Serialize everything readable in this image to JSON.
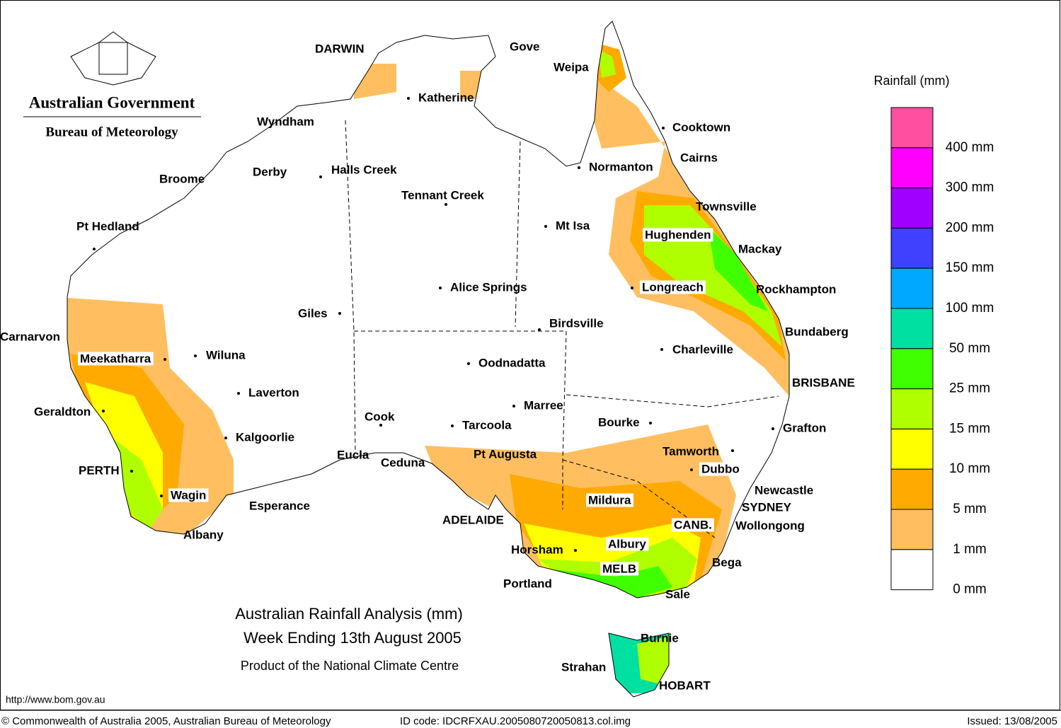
{
  "logo": {
    "line1": "Australian Government",
    "line2": "Bureau of Meteorology"
  },
  "title": {
    "line1": "Australian Rainfall Analysis (mm)",
    "line2": "Week Ending 13th August 2005",
    "line3": "Product of the National Climate Centre"
  },
  "places": [
    "DARWIN",
    "Gove",
    "Weipa",
    "Katherine",
    "Wyndham",
    "Cooktown",
    "Cairns",
    "Broome",
    "Derby",
    "Halls Creek",
    "Normanton",
    "Tennant Creek",
    "Townsville",
    "Pt Hedland",
    "Mt Isa",
    "Hughenden",
    "Mackay",
    "Alice Springs",
    "Longreach",
    "Rockhampton",
    "Giles",
    "Birdsville",
    "Bundaberg",
    "Carnarvon",
    "Charleville",
    "Meekatharra",
    "Wiluna",
    "Oodnadatta",
    "BRISBANE",
    "Laverton",
    "Marree",
    "Geraldton",
    "Cook",
    "Bourke",
    "Tarcoola",
    "Grafton",
    "Kalgoorlie",
    "Tamworth",
    "Eucla",
    "Pt Augusta",
    "Ceduna",
    "Dubbo",
    "PERTH",
    "Newcastle",
    "Wagin",
    "Mildura",
    "Esperance",
    "SYDNEY",
    "ADELAIDE",
    "CANB.",
    "Wollongong",
    "Albany",
    "Albury",
    "Horsham",
    "Bega",
    "MELB",
    "Portland",
    "Sale",
    "Burnie",
    "Strahan",
    "HOBART"
  ],
  "legend": {
    "title": "Rainfall (mm)",
    "items": [
      {
        "label": "400 mm",
        "color": "#ff4fa0"
      },
      {
        "label": "300 mm",
        "color": "#ff00ff"
      },
      {
        "label": "200 mm",
        "color": "#a000ff"
      },
      {
        "label": "150 mm",
        "color": "#4040ff"
      },
      {
        "label": "100 mm",
        "color": "#00a8ff"
      },
      {
        "label": "50 mm",
        "color": "#00e0a0"
      },
      {
        "label": "25 mm",
        "color": "#40ff00"
      },
      {
        "label": "15 mm",
        "color": "#b0ff00"
      },
      {
        "label": "10 mm",
        "color": "#ffff00"
      },
      {
        "label": "5 mm",
        "color": "#ffaa00"
      },
      {
        "label": "1 mm",
        "color": "#ffbf60"
      },
      {
        "label": "0 mm",
        "color": "#ffffff"
      }
    ]
  },
  "footer": {
    "url": "http://www.bom.gov.au",
    "copyright": "© Commonwealth of Australia 2005, Australian Bureau of Meteorology",
    "id_code": "ID code: IDCRFXAU.2005080720050813.col.img",
    "issued": "Issued: 13/08/2005"
  }
}
